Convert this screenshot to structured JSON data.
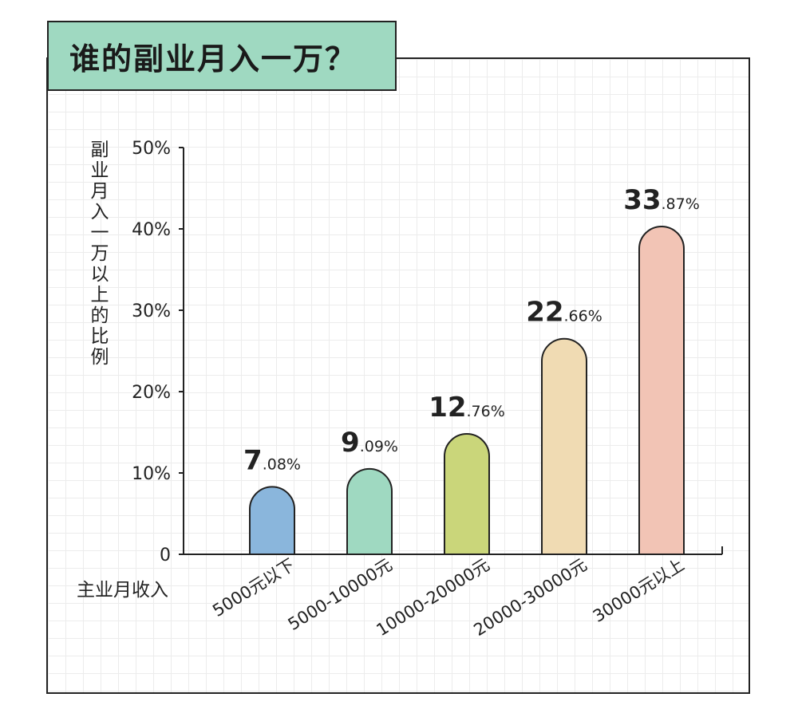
{
  "chart_data": {
    "type": "bar",
    "title": "谁的副业月入一万？",
    "ylabel": "副业月入一万以上的比例",
    "xlabel": "主业月收入",
    "categories": [
      "5000元以下",
      "5000-10000元",
      "10000-20000元",
      "20000-30000元",
      "30000元以上"
    ],
    "values": [
      7.08,
      9.09,
      12.76,
      22.66,
      33.87
    ],
    "value_labels": [
      {
        "int": "7",
        "dec": ".08%"
      },
      {
        "int": "9",
        "dec": ".09%"
      },
      {
        "int": "12",
        "dec": ".76%"
      },
      {
        "int": "22",
        "dec": ".66%"
      },
      {
        "int": "33",
        "dec": ".87%"
      }
    ],
    "bar_fill_levels": [
      8.3,
      10.5,
      14.8,
      26.5,
      40.3
    ],
    "yticks": [
      "0",
      "10%",
      "20%",
      "30%",
      "40%",
      "50%"
    ],
    "ytick_values": [
      0,
      10,
      20,
      30,
      40,
      50
    ],
    "ylim": [
      0,
      50
    ],
    "grid": true,
    "colors": [
      "#8ab6dc",
      "#9fd9c1",
      "#cad67a",
      "#f0dbb3",
      "#f2c4b5"
    ],
    "title_box_color": "#9fd9c1"
  }
}
